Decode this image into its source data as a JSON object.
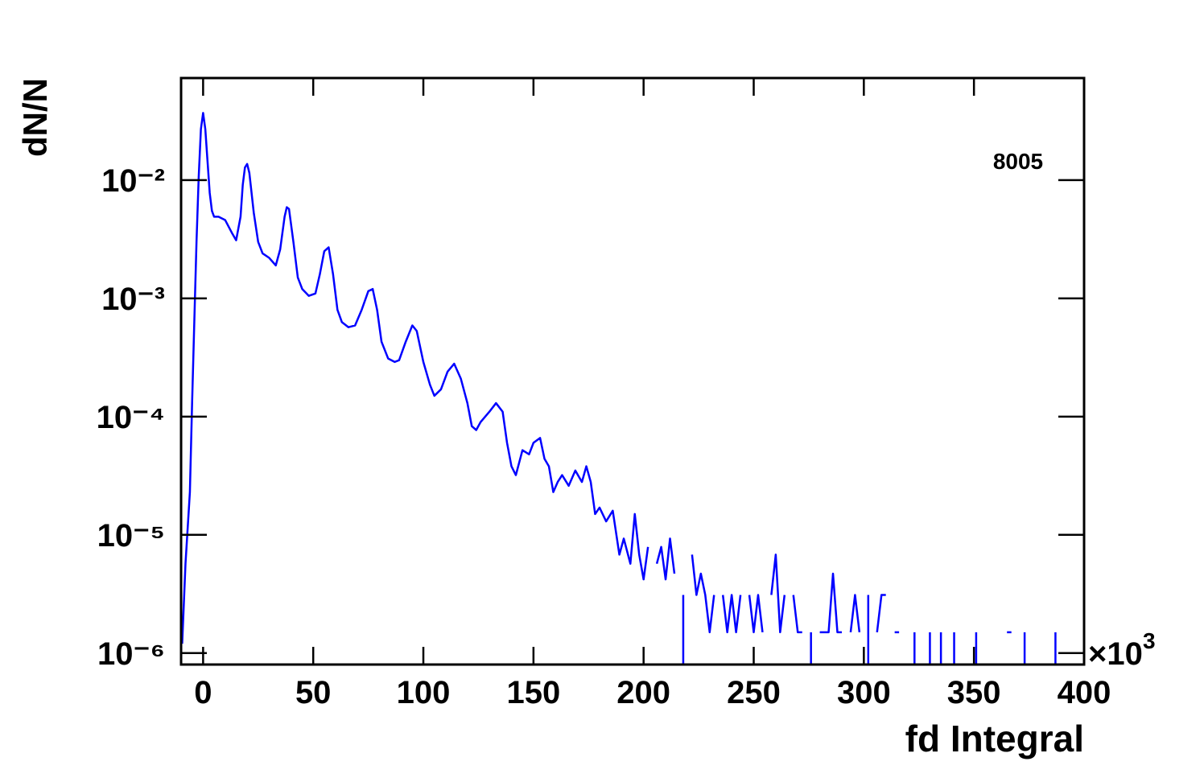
{
  "chart_data": {
    "type": "line",
    "x_label": "fd Integral",
    "y_label": "dN/N",
    "x_scale_label": "×10",
    "x_scale_exponent": "3",
    "xlim": [
      -10,
      400
    ],
    "xticks": [
      0,
      50,
      100,
      150,
      200,
      250,
      300,
      350,
      400
    ],
    "ylim": [
      8e-07,
      0.073
    ],
    "log_y": true,
    "yticks": [
      {
        "value": 0.01,
        "label": "10⁻²"
      },
      {
        "value": 0.001,
        "label": "10⁻³"
      },
      {
        "value": 0.0001,
        "label": "10⁻⁴"
      },
      {
        "value": 1e-05,
        "label": "10⁻⁵"
      },
      {
        "value": 1e-06,
        "label": "10⁻⁶"
      }
    ],
    "grid": false,
    "legend": "upper right",
    "series": [
      {
        "name": "8005",
        "color": "#0000ff",
        "x": [
          -9.5,
          -8,
          -6,
          -5,
          -4,
          -3,
          -2,
          -1,
          0,
          1,
          2,
          3,
          4,
          5,
          7,
          10,
          13,
          15,
          17,
          18,
          19,
          20,
          21,
          23,
          25,
          27,
          30,
          33,
          35,
          37,
          38,
          39,
          41,
          43,
          45,
          48,
          51,
          53,
          55,
          57,
          59,
          61,
          63,
          66,
          69,
          72,
          75,
          77,
          79,
          81,
          84,
          87,
          89,
          92,
          95,
          97,
          100,
          103,
          105,
          108,
          111,
          114,
          117,
          120,
          122,
          124,
          126,
          130,
          133,
          136,
          138,
          140,
          142,
          145,
          148,
          150,
          153,
          155,
          157,
          159,
          161,
          163,
          166,
          169,
          172,
          174,
          176,
          178,
          180,
          183,
          186,
          189,
          191,
          194,
          196,
          198,
          200,
          202,
          204,
          206,
          208,
          210,
          212,
          214,
          216,
          218,
          220,
          222,
          224,
          226,
          228,
          230,
          232,
          234,
          236,
          238,
          240,
          242,
          244,
          246,
          248,
          250,
          252,
          254,
          256,
          258,
          260,
          262,
          264,
          266,
          268,
          270,
          272,
          274,
          276,
          278,
          280,
          282,
          284,
          286,
          288,
          290,
          292,
          294,
          296,
          298,
          300,
          302,
          304,
          306,
          308,
          310,
          312,
          314,
          316,
          320,
          323,
          325,
          330,
          332,
          335,
          337,
          341,
          343,
          351,
          353,
          365,
          367,
          369,
          373,
          375,
          387,
          389
        ],
        "values": [
          1.2e-06,
          5.7e-06,
          2.3e-05,
          0.00013,
          0.00063,
          0.003,
          0.0106,
          0.027,
          0.037,
          0.027,
          0.0145,
          0.0078,
          0.0055,
          0.0049,
          0.0049,
          0.0046,
          0.0036,
          0.0031,
          0.0049,
          0.0091,
          0.0128,
          0.0137,
          0.0115,
          0.0053,
          0.003,
          0.0024,
          0.0022,
          0.0019,
          0.0026,
          0.0049,
          0.0059,
          0.0057,
          0.003,
          0.0015,
          0.0012,
          0.00105,
          0.0011,
          0.0016,
          0.0025,
          0.0027,
          0.0016,
          0.0008,
          0.00063,
          0.00057,
          0.00059,
          0.0008,
          0.00115,
          0.0012,
          0.0008,
          0.00043,
          0.00031,
          0.00029,
          0.0003,
          0.00043,
          0.00059,
          0.00053,
          0.00029,
          0.000186,
          0.00015,
          0.00017,
          0.00024,
          0.00028,
          0.00021,
          0.00013,
          8.3e-05,
          7.7e-05,
          9e-05,
          0.00011,
          0.00013,
          0.00011,
          6e-05,
          3.8e-05,
          3.2e-05,
          5.2e-05,
          4.8e-05,
          6e-05,
          6.6e-05,
          4.4e-05,
          3.8e-05,
          2.3e-05,
          2.8e-05,
          3.2e-05,
          2.6e-05,
          3.5e-05,
          2.8e-05,
          3.8e-05,
          2.8e-05,
          1.5e-05,
          1.7e-05,
          1.3e-05,
          1.6e-05,
          6.8e-06,
          9.3e-06,
          5.7e-06,
          1.5e-05,
          6.8e-06,
          4.2e-06,
          7.9e-06,
          null,
          5.7e-06,
          7.9e-06,
          4.2e-06,
          9.3e-06,
          4.7e-06,
          null,
          3.1e-06,
          null,
          6.8e-06,
          3.1e-06,
          4.7e-06,
          3.1e-06,
          1.5e-06,
          3.1e-06,
          null,
          3.1e-06,
          1.5e-06,
          3.1e-06,
          1.5e-06,
          3.1e-06,
          null,
          3.1e-06,
          1.5e-06,
          3.1e-06,
          1.5e-06,
          null,
          3.1e-06,
          6.8e-06,
          1.5e-06,
          3.1e-06,
          null,
          3.1e-06,
          1.5e-06,
          1.5e-06,
          null,
          1.5e-06,
          null,
          1.5e-06,
          1.5e-06,
          1.5e-06,
          4.7e-06,
          1.5e-06,
          1.5e-06,
          null,
          1.5e-06,
          3.1e-06,
          1.5e-06,
          null,
          3.1e-06,
          null,
          1.5e-06,
          3.1e-06,
          3.1e-06,
          null,
          1.5e-06,
          1.5e-06,
          null,
          1.5e-06,
          null,
          1.5e-06,
          null,
          1.5e-06,
          null,
          1.5e-06,
          null,
          1.5e-06,
          null,
          1.5e-06,
          1.5e-06,
          null,
          1.5e-06,
          null,
          1.5e-06,
          null
        ]
      }
    ]
  }
}
